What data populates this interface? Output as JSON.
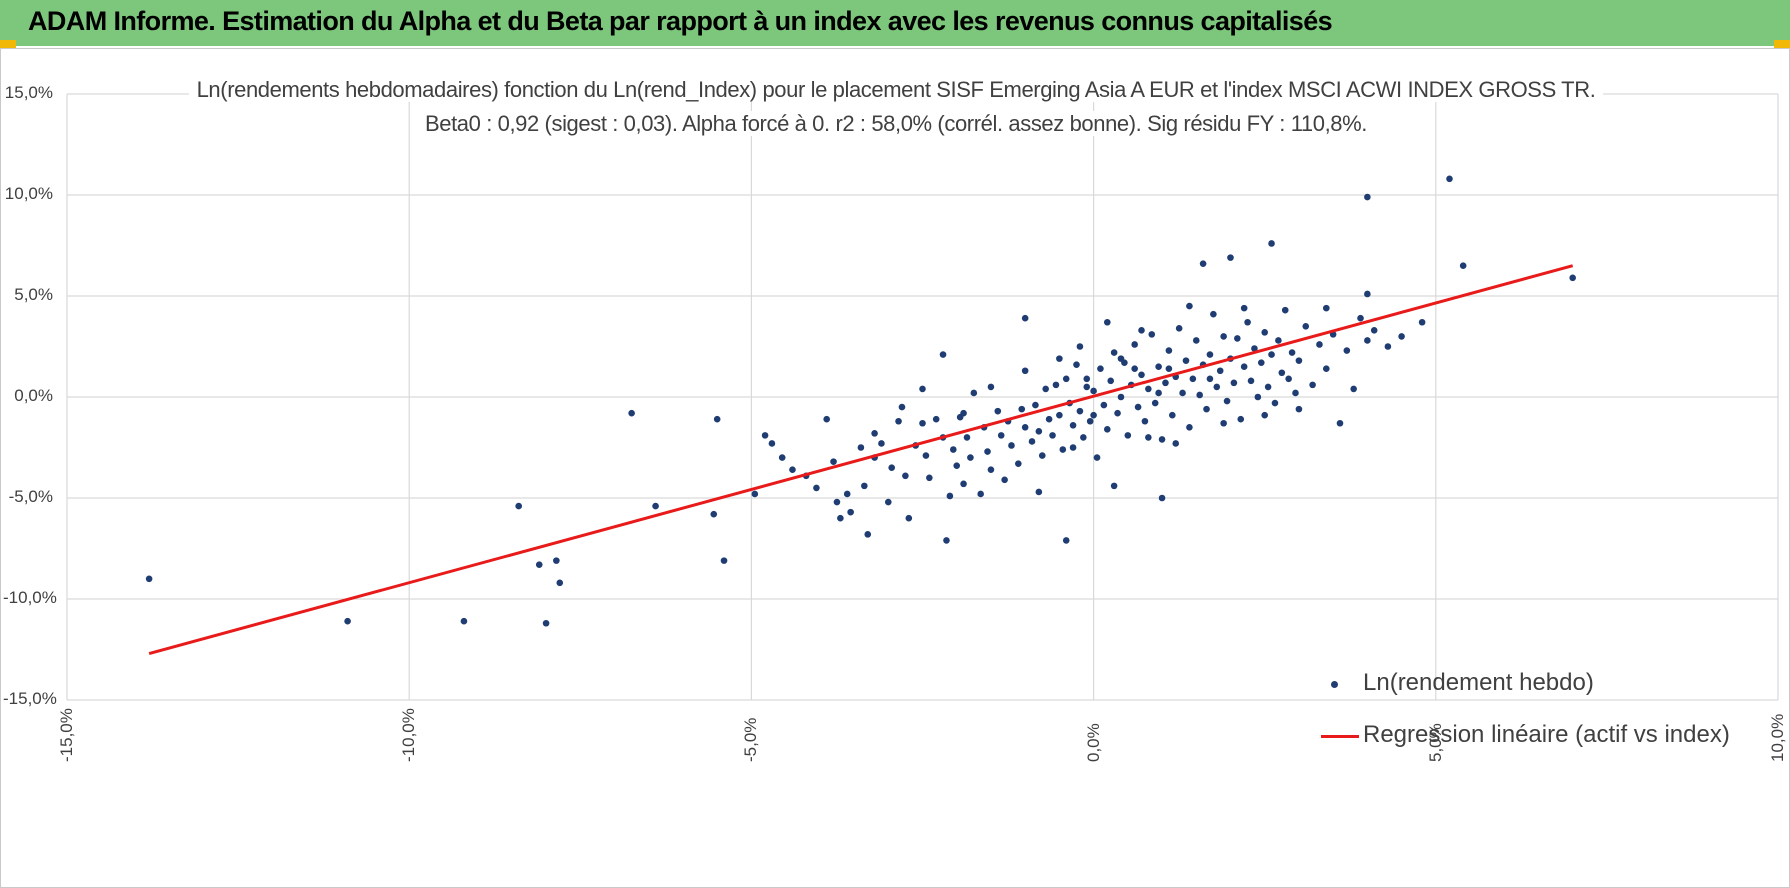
{
  "header": {
    "title": "ADAM Informe. Estimation du Alpha et du Beta par rapport à un index avec les revenus connus capitalisés",
    "background_color": "#7dc77d",
    "corner_color": "#f2b807"
  },
  "chart_data": {
    "type": "scatter",
    "title_line1": "Ln(rendements hebdomadaires) fonction du Ln(rend_Index) pour le placement SISF Emerging Asia A EUR  et l'index MSCI ACWI INDEX GROSS TR.",
    "title_line2": "Beta0 : 0,92  (sigest : 0,03). Alpha forcé à 0. r2 : 58,0% (corrél. assez bonne). Sig résidu FY : 110,8%.",
    "xlabel": "",
    "ylabel": "",
    "xlim": [
      -15,
      10
    ],
    "ylim": [
      -15,
      15
    ],
    "x_ticks": [
      -15,
      -10,
      -5,
      0,
      5,
      10
    ],
    "y_ticks": [
      15,
      10,
      5,
      0,
      -5,
      -10,
      -15
    ],
    "x_tick_labels": [
      "-15,0%",
      "-10,0%",
      "-5,0%",
      "0,0%",
      "5,0%",
      "10,0%"
    ],
    "y_tick_labels": [
      "15,0%",
      "10,0%",
      "5,0%",
      "0,0%",
      "-5,0%",
      "-10,0%",
      "-15,0%"
    ],
    "grid": true,
    "legend_position": "bottom-right",
    "series": [
      {
        "name": "Ln(rendement hebdo)",
        "kind": "scatter",
        "color": "#1f3d73",
        "points": [
          [
            -13.8,
            -9.0
          ],
          [
            -10.9,
            -11.1
          ],
          [
            -9.2,
            -11.1
          ],
          [
            -8.4,
            -5.4
          ],
          [
            -8.1,
            -8.3
          ],
          [
            -8.0,
            -11.2
          ],
          [
            -7.85,
            -8.1
          ],
          [
            -7.8,
            -9.2
          ],
          [
            -6.75,
            -0.8
          ],
          [
            -6.4,
            -5.4
          ],
          [
            -5.55,
            -5.8
          ],
          [
            -5.5,
            -1.1
          ],
          [
            -5.4,
            -8.1
          ],
          [
            -4.95,
            -4.8
          ],
          [
            -4.8,
            -1.9
          ],
          [
            -4.7,
            -2.3
          ],
          [
            -4.55,
            -3.0
          ],
          [
            -4.4,
            -3.6
          ],
          [
            -4.2,
            -3.9
          ],
          [
            -4.05,
            -4.5
          ],
          [
            -3.9,
            -1.1
          ],
          [
            -3.8,
            -3.2
          ],
          [
            -3.75,
            -5.2
          ],
          [
            -3.7,
            -6.0
          ],
          [
            -3.6,
            -4.8
          ],
          [
            -3.55,
            -5.7
          ],
          [
            -3.4,
            -2.5
          ],
          [
            -3.35,
            -4.4
          ],
          [
            -3.3,
            -6.8
          ],
          [
            -3.2,
            -3.0
          ],
          [
            -3.1,
            -2.3
          ],
          [
            -3.0,
            -5.2
          ],
          [
            -2.95,
            -3.5
          ],
          [
            -2.85,
            -1.2
          ],
          [
            -2.75,
            -3.9
          ],
          [
            -2.7,
            -6.0
          ],
          [
            -2.6,
            -2.4
          ],
          [
            -2.5,
            -1.3
          ],
          [
            -2.45,
            -2.9
          ],
          [
            -2.4,
            -4.0
          ],
          [
            -2.3,
            -1.1
          ],
          [
            -2.2,
            2.1
          ],
          [
            -2.15,
            -7.1
          ],
          [
            -2.1,
            -4.9
          ],
          [
            -2.05,
            -2.6
          ],
          [
            -2.0,
            -3.4
          ],
          [
            -1.95,
            -1.0
          ],
          [
            -1.9,
            -4.3
          ],
          [
            -1.85,
            -2.0
          ],
          [
            -1.8,
            -3.0
          ],
          [
            -1.75,
            0.2
          ],
          [
            -1.65,
            -4.8
          ],
          [
            -1.6,
            -1.5
          ],
          [
            -1.55,
            -2.7
          ],
          [
            -1.5,
            -3.6
          ],
          [
            -1.4,
            -0.7
          ],
          [
            -1.35,
            -1.9
          ],
          [
            -1.3,
            -4.1
          ],
          [
            -1.25,
            -1.2
          ],
          [
            -1.2,
            -2.4
          ],
          [
            -1.1,
            -3.3
          ],
          [
            -1.05,
            -0.6
          ],
          [
            -1.0,
            -1.5
          ],
          [
            -0.9,
            -2.2
          ],
          [
            -0.85,
            -0.4
          ],
          [
            -0.8,
            -1.7
          ],
          [
            -0.75,
            -2.9
          ],
          [
            -0.7,
            0.4
          ],
          [
            -0.65,
            -1.1
          ],
          [
            -0.6,
            -1.9
          ],
          [
            -0.55,
            0.6
          ],
          [
            -0.5,
            -0.9
          ],
          [
            -0.45,
            -2.6
          ],
          [
            -0.4,
            0.9
          ],
          [
            -0.35,
            -0.3
          ],
          [
            -0.3,
            -1.4
          ],
          [
            -0.25,
            1.6
          ],
          [
            -0.2,
            -0.7
          ],
          [
            -0.15,
            -2.0
          ],
          [
            -0.1,
            0.5
          ],
          [
            -0.05,
            -1.2
          ],
          [
            0.0,
            0.3
          ],
          [
            0.0,
            -0.9
          ],
          [
            0.05,
            -3.0
          ],
          [
            0.1,
            1.4
          ],
          [
            0.15,
            -0.4
          ],
          [
            0.2,
            -1.6
          ],
          [
            0.25,
            0.8
          ],
          [
            0.3,
            2.2
          ],
          [
            0.35,
            -0.8
          ],
          [
            0.4,
            0.0
          ],
          [
            0.45,
            1.7
          ],
          [
            0.5,
            -1.9
          ],
          [
            0.55,
            0.6
          ],
          [
            0.6,
            2.6
          ],
          [
            0.65,
            -0.5
          ],
          [
            0.7,
            1.1
          ],
          [
            0.75,
            -1.2
          ],
          [
            0.8,
            0.4
          ],
          [
            0.85,
            3.1
          ],
          [
            0.9,
            -0.3
          ],
          [
            0.95,
            1.5
          ],
          [
            1.0,
            -2.1
          ],
          [
            1.05,
            0.7
          ],
          [
            1.1,
            2.3
          ],
          [
            1.15,
            -0.9
          ],
          [
            1.2,
            1.0
          ],
          [
            1.25,
            3.4
          ],
          [
            1.3,
            0.2
          ],
          [
            1.35,
            1.8
          ],
          [
            1.4,
            -1.5
          ],
          [
            1.45,
            0.9
          ],
          [
            1.5,
            2.8
          ],
          [
            1.55,
            0.1
          ],
          [
            1.6,
            1.6
          ],
          [
            1.65,
            -0.6
          ],
          [
            1.7,
            2.1
          ],
          [
            1.75,
            4.1
          ],
          [
            1.8,
            0.5
          ],
          [
            1.85,
            1.3
          ],
          [
            1.9,
            3.0
          ],
          [
            1.95,
            -0.2
          ],
          [
            2.0,
            1.9
          ],
          [
            2.05,
            0.7
          ],
          [
            2.1,
            2.9
          ],
          [
            2.15,
            -1.1
          ],
          [
            2.2,
            1.5
          ],
          [
            2.25,
            3.7
          ],
          [
            2.3,
            0.8
          ],
          [
            2.35,
            2.4
          ],
          [
            2.4,
            0.0
          ],
          [
            2.45,
            1.7
          ],
          [
            2.5,
            3.2
          ],
          [
            2.55,
            0.5
          ],
          [
            2.6,
            2.1
          ],
          [
            2.65,
            -0.3
          ],
          [
            2.7,
            2.8
          ],
          [
            2.75,
            1.2
          ],
          [
            2.8,
            4.3
          ],
          [
            2.85,
            0.9
          ],
          [
            2.9,
            2.2
          ],
          [
            2.95,
            0.2
          ],
          [
            3.0,
            1.8
          ],
          [
            3.1,
            3.5
          ],
          [
            3.2,
            0.6
          ],
          [
            3.3,
            2.6
          ],
          [
            3.4,
            1.4
          ],
          [
            3.5,
            3.1
          ],
          [
            3.6,
            -1.3
          ],
          [
            3.7,
            2.3
          ],
          [
            3.8,
            0.4
          ],
          [
            3.9,
            3.9
          ],
          [
            4.0,
            2.8
          ],
          [
            4.0,
            5.1
          ],
          [
            4.1,
            3.3
          ],
          [
            4.3,
            2.5
          ],
          [
            4.5,
            3.0
          ],
          [
            4.8,
            3.7
          ],
          [
            0.3,
            -4.4
          ],
          [
            -0.4,
            -7.1
          ],
          [
            -0.8,
            -4.7
          ],
          [
            1.0,
            -5.0
          ],
          [
            2.0,
            6.9
          ],
          [
            1.6,
            6.6
          ],
          [
            2.6,
            7.6
          ],
          [
            4.0,
            9.9
          ],
          [
            5.2,
            10.8
          ],
          [
            5.4,
            6.5
          ],
          [
            7.0,
            5.9
          ],
          [
            -1.0,
            3.9
          ],
          [
            -0.5,
            1.9
          ],
          [
            -1.5,
            0.5
          ],
          [
            -2.5,
            0.4
          ],
          [
            -1.0,
            1.3
          ],
          [
            0.2,
            3.7
          ],
          [
            1.4,
            4.5
          ],
          [
            2.2,
            4.4
          ],
          [
            3.4,
            4.4
          ],
          [
            -0.2,
            2.5
          ],
          [
            0.7,
            3.3
          ],
          [
            -2.2,
            -2.0
          ],
          [
            -2.8,
            -0.5
          ],
          [
            -3.2,
            -1.8
          ],
          [
            -1.9,
            -0.8
          ],
          [
            -0.3,
            -2.5
          ],
          [
            0.8,
            -2.0
          ],
          [
            1.2,
            -2.3
          ],
          [
            1.9,
            -1.3
          ],
          [
            2.5,
            -0.9
          ],
          [
            3.0,
            -0.6
          ],
          [
            0.6,
            1.4
          ],
          [
            0.95,
            0.2
          ],
          [
            1.7,
            0.9
          ],
          [
            -0.1,
            0.9
          ],
          [
            0.4,
            1.9
          ],
          [
            1.1,
            1.4
          ]
        ]
      },
      {
        "name": "Regression linéaire (actif vs index)",
        "kind": "line",
        "color": "#e81a1a",
        "points": [
          [
            -13.8,
            -12.7
          ],
          [
            7.0,
            6.5
          ]
        ]
      }
    ]
  }
}
